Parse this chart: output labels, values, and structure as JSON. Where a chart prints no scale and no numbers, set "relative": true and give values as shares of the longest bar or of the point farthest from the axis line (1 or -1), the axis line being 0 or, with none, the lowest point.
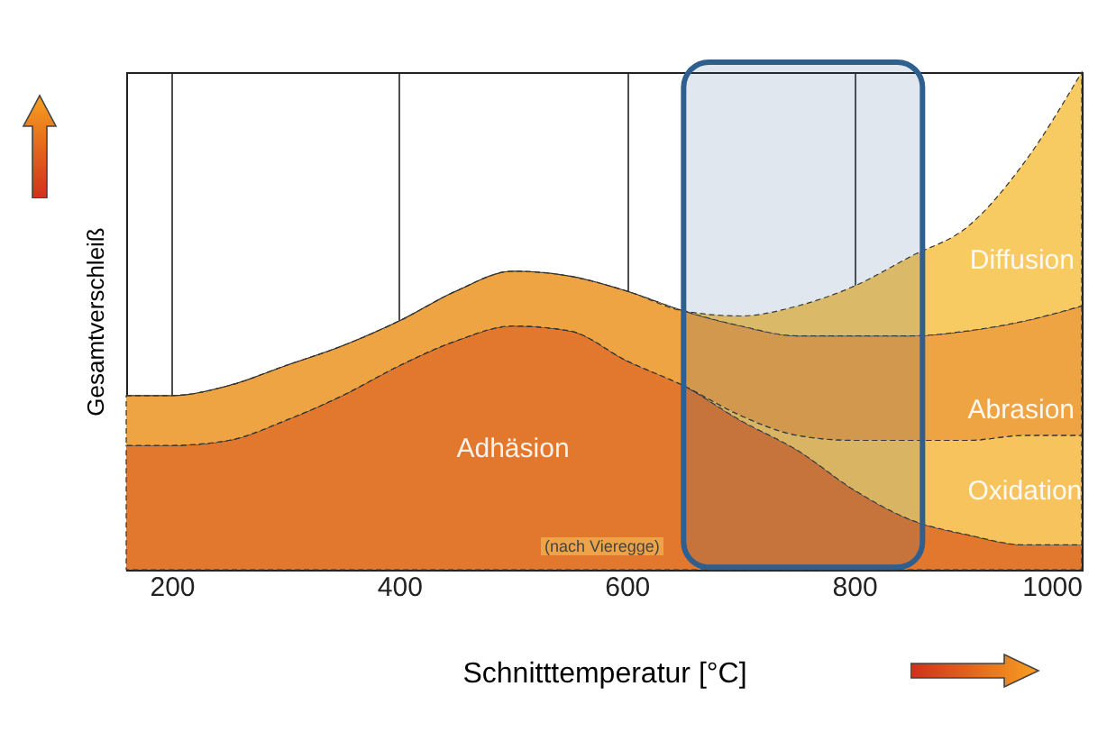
{
  "chart_data": {
    "type": "area",
    "stacked": true,
    "relative": true,
    "xlabel": "Schnitttemperatur  [°C]",
    "ylabel": "Gesamtverschleiß",
    "x": [
      160,
      200,
      250,
      300,
      350,
      400,
      450,
      500,
      550,
      600,
      650,
      700,
      750,
      800,
      850,
      900,
      950,
      1000
    ],
    "xlim": [
      160,
      1000
    ],
    "xticks": [
      200,
      400,
      600,
      800,
      1000
    ],
    "grid": "x",
    "legend": false,
    "series": [
      {
        "name": "Adhäsion",
        "color": "#e2772e",
        "values": [
          0.25,
          0.25,
          0.26,
          0.3,
          0.35,
          0.41,
          0.46,
          0.49,
          0.48,
          0.42,
          0.37,
          0.3,
          0.24,
          0.16,
          0.1,
          0.07,
          0.05,
          0.05
        ]
      },
      {
        "name": "Oxidation",
        "color": "#f6c35c",
        "values": [
          0,
          0,
          0,
          0,
          0,
          0,
          0,
          0,
          0,
          0,
          0,
          0.01,
          0.03,
          0.1,
          0.16,
          0.19,
          0.22,
          0.22
        ]
      },
      {
        "name": "Abrasion",
        "color": "#efa444",
        "values": [
          0.1,
          0.1,
          0.11,
          0.11,
          0.1,
          0.09,
          0.1,
          0.11,
          0.11,
          0.14,
          0.15,
          0.18,
          0.2,
          0.21,
          0.21,
          0.22,
          0.23,
          0.26
        ]
      },
      {
        "name": "Diffusion",
        "color": "#f8ca62",
        "values": [
          0,
          0,
          0,
          0,
          0,
          0,
          0,
          0,
          0,
          0,
          0,
          0.02,
          0.06,
          0.1,
          0.16,
          0.21,
          0.32,
          0.47
        ]
      }
    ],
    "bands": [
      {
        "axis": "x",
        "from": 650,
        "to": 860,
        "color": "#2f5f8f"
      }
    ],
    "annotations": [
      "(nach Vieregge)"
    ]
  }
}
